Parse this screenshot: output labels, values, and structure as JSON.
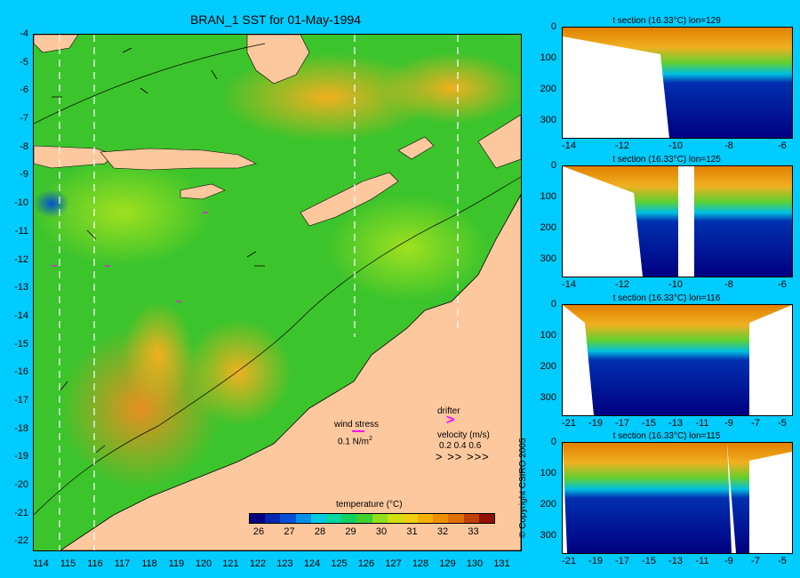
{
  "title": "BRAN_1 SST for 01-May-1994",
  "map": {
    "yticks": [
      "-4",
      "-5",
      "-6",
      "-7",
      "-8",
      "-9",
      "-10",
      "-11",
      "-12",
      "-13",
      "-14",
      "-15",
      "-16",
      "-17",
      "-18",
      "-19",
      "-20",
      "-21",
      "-22"
    ],
    "xticks": [
      "114",
      "115",
      "116",
      "117",
      "118",
      "119",
      "120",
      "121",
      "122",
      "123",
      "124",
      "125",
      "126",
      "127",
      "128",
      "129",
      "130",
      "131"
    ],
    "land_color": "#fdc89e",
    "ocean_color": "#39c22b"
  },
  "legend": {
    "wind_stress_label": "wind stress",
    "wind_stress_scale": "0.1 N/m",
    "wind_stress_sup": "2",
    "drifter_label": "drifter",
    "velocity_label": "velocity (m/s)",
    "velocity_values": "0.2 0.4 0.6",
    "drifter_color": "#ff00ff"
  },
  "colorbar": {
    "title": "temperature (°C)",
    "ticks": [
      "26",
      "27",
      "28",
      "29",
      "30",
      "31",
      "32",
      "33"
    ],
    "colors": [
      "#000080",
      "#0028b0",
      "#0050d8",
      "#0090e8",
      "#00c8e0",
      "#00d8a0",
      "#10d060",
      "#40d030",
      "#90e020",
      "#d0e010",
      "#f0d010",
      "#f8b000",
      "#f09000",
      "#e07000",
      "#c04000",
      "#901000"
    ]
  },
  "sections": [
    {
      "title": "t section (16.33°C) lon=129",
      "yticks": [
        "0",
        "100",
        "200",
        "300"
      ],
      "xticks": [
        "-14",
        "-12",
        "-10",
        "-8",
        "-6"
      ]
    },
    {
      "title": "t section (16.33°C) lon=125",
      "yticks": [
        "0",
        "100",
        "200",
        "300"
      ],
      "xticks": [
        "-14",
        "-12",
        "-10",
        "-8",
        "-6"
      ]
    },
    {
      "title": "t section (16.33°C) lon=116",
      "yticks": [
        "0",
        "100",
        "200",
        "300"
      ],
      "xticks": [
        "-21",
        "-19",
        "-17",
        "-15",
        "-13",
        "-11",
        "-9",
        "-7",
        "-5"
      ]
    },
    {
      "title": "t section (16.33°C) lon=115",
      "yticks": [
        "0",
        "100",
        "200",
        "300"
      ],
      "xticks": [
        "-21",
        "-19",
        "-17",
        "-15",
        "-13",
        "-11",
        "-9",
        "-7",
        "-5"
      ]
    }
  ],
  "copyright": "© Copyright CSIRO 2005"
}
